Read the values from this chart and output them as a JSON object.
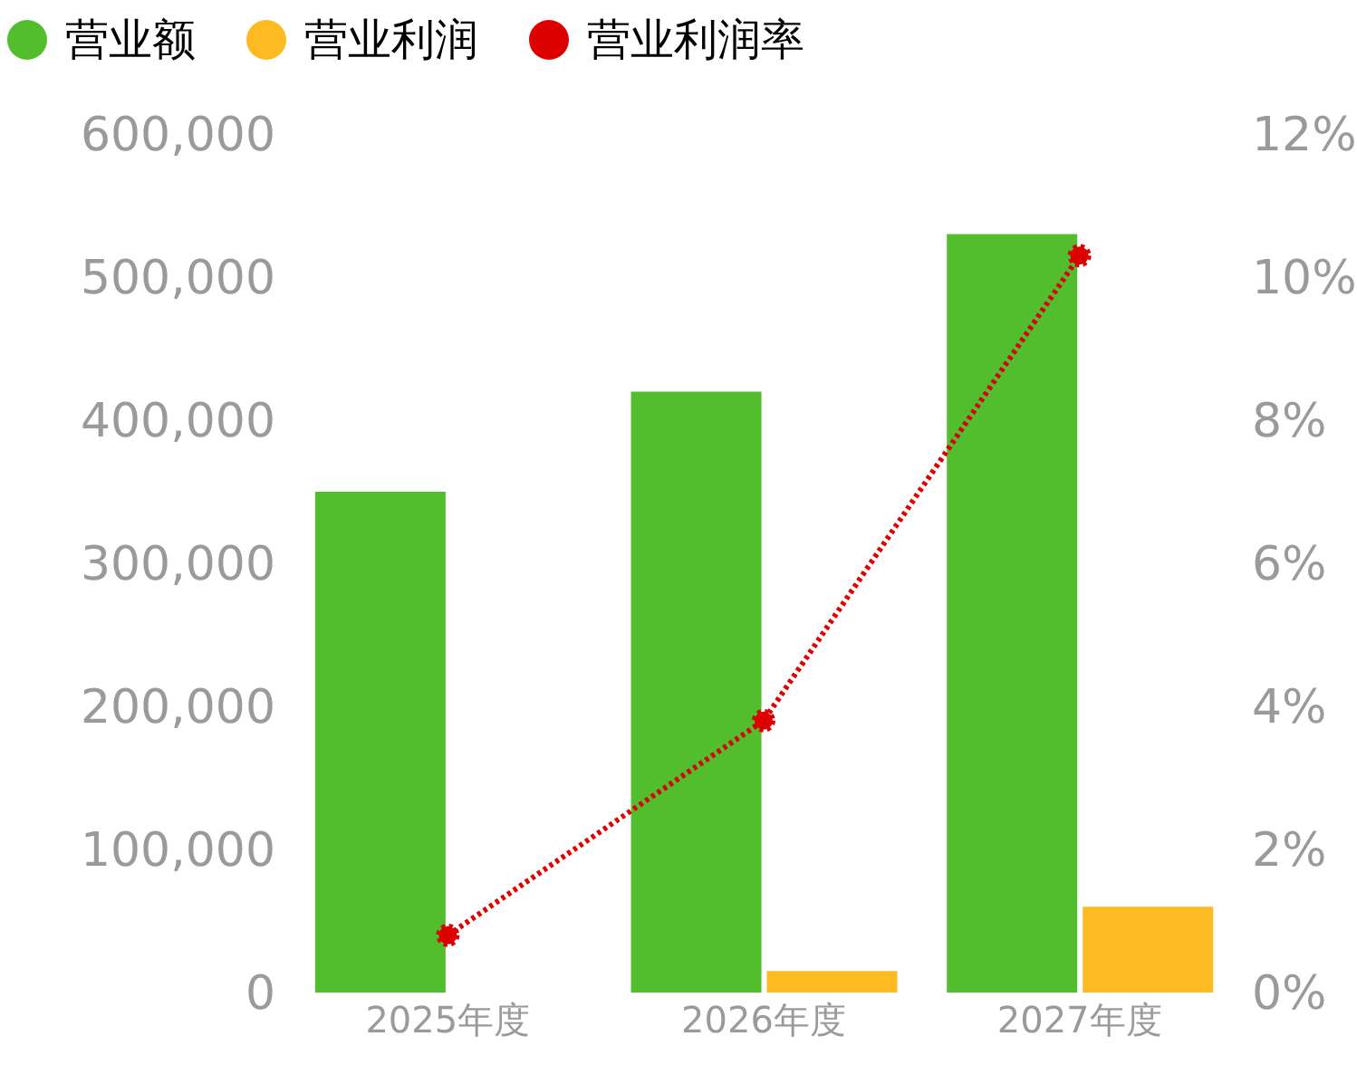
{
  "chart_data": {
    "type": "bar",
    "categories": [
      "2025年度",
      "2026年度",
      "2027年度"
    ],
    "series": [
      {
        "name": "营业额",
        "color": "#52be2e",
        "values": [
          350000,
          420000,
          530000
        ]
      },
      {
        "name": "营业利润",
        "color": "#fdbb21",
        "values": [
          null,
          15000,
          60000
        ]
      },
      {
        "name": "营业利润率",
        "color": "#dd0000",
        "type": "line",
        "axis": "y2",
        "values": [
          0.8,
          3.8,
          10.3
        ]
      }
    ],
    "ylim": [
      0,
      600000
    ],
    "yticks": [
      {
        "value": 0,
        "label": "0"
      },
      {
        "value": 100000,
        "label": "100,000"
      },
      {
        "value": 200000,
        "label": "200,000"
      },
      {
        "value": 300000,
        "label": "300,000"
      },
      {
        "value": 400000,
        "label": "400,000"
      },
      {
        "value": 500000,
        "label": "500,000"
      },
      {
        "value": 600000,
        "label": "600,000"
      }
    ],
    "y2lim": [
      0,
      12
    ],
    "y2ticks": [
      {
        "value": 0,
        "label": "0%"
      },
      {
        "value": 2,
        "label": "2%"
      },
      {
        "value": 4,
        "label": "4%"
      },
      {
        "value": 6,
        "label": "6%"
      },
      {
        "value": 8,
        "label": "8%"
      },
      {
        "value": 10,
        "label": "10%"
      },
      {
        "value": 12,
        "label": "12%"
      }
    ],
    "grid": false,
    "legend": "top left",
    "marker": "circle",
    "line_style": "dotted"
  }
}
